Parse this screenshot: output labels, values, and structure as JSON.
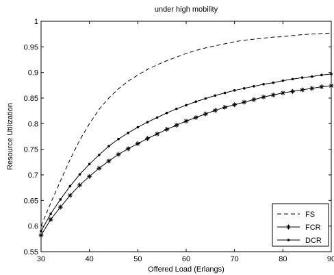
{
  "chart_data": {
    "type": "line",
    "title": "under high mobility",
    "xlabel": "Offered Load (Erlangs)",
    "ylabel": "Resource Utilization",
    "xlim": [
      30,
      90
    ],
    "ylim": [
      0.55,
      1.0
    ],
    "xticks": [
      30,
      40,
      50,
      60,
      70,
      80,
      90
    ],
    "yticks": [
      0.55,
      0.6,
      0.65,
      0.7,
      0.75,
      0.8,
      0.85,
      0.9,
      0.95,
      1.0
    ],
    "ytick_labels": [
      "0.55",
      "0.6",
      "0.65",
      "0.7",
      "0.75",
      "0.8",
      "0.85",
      "0.9",
      "0.95",
      "1"
    ],
    "grid": false,
    "legend_position": "bottom-right",
    "x": [
      30,
      32,
      34,
      36,
      38,
      40,
      42,
      44,
      46,
      48,
      50,
      52,
      54,
      56,
      58,
      60,
      62,
      64,
      66,
      68,
      70,
      72,
      74,
      76,
      78,
      80,
      82,
      84,
      86,
      88,
      90
    ],
    "series": [
      {
        "name": "FS",
        "style": "dashed",
        "marker": "none",
        "color": "#000000",
        "values": [
          0.6,
          0.645,
          0.688,
          0.73,
          0.768,
          0.8,
          0.828,
          0.85,
          0.868,
          0.883,
          0.895,
          0.906,
          0.915,
          0.923,
          0.93,
          0.937,
          0.943,
          0.948,
          0.952,
          0.956,
          0.96,
          0.963,
          0.965,
          0.967,
          0.969,
          0.97,
          0.972,
          0.974,
          0.975,
          0.976,
          0.977
        ]
      },
      {
        "name": "FCR",
        "style": "solid",
        "marker": "asterisk",
        "color": "#000000",
        "values": [
          0.582,
          0.613,
          0.637,
          0.66,
          0.68,
          0.697,
          0.713,
          0.727,
          0.74,
          0.751,
          0.761,
          0.771,
          0.78,
          0.789,
          0.797,
          0.805,
          0.812,
          0.819,
          0.826,
          0.832,
          0.837,
          0.842,
          0.847,
          0.852,
          0.856,
          0.86,
          0.863,
          0.866,
          0.869,
          0.872,
          0.874
        ]
      },
      {
        "name": "DCR",
        "style": "solid",
        "marker": "dot",
        "color": "#000000",
        "values": [
          0.59,
          0.624,
          0.652,
          0.678,
          0.701,
          0.721,
          0.739,
          0.756,
          0.77,
          0.782,
          0.793,
          0.803,
          0.812,
          0.821,
          0.829,
          0.836,
          0.843,
          0.849,
          0.855,
          0.86,
          0.865,
          0.869,
          0.873,
          0.877,
          0.88,
          0.884,
          0.887,
          0.89,
          0.892,
          0.895,
          0.897
        ]
      }
    ]
  }
}
